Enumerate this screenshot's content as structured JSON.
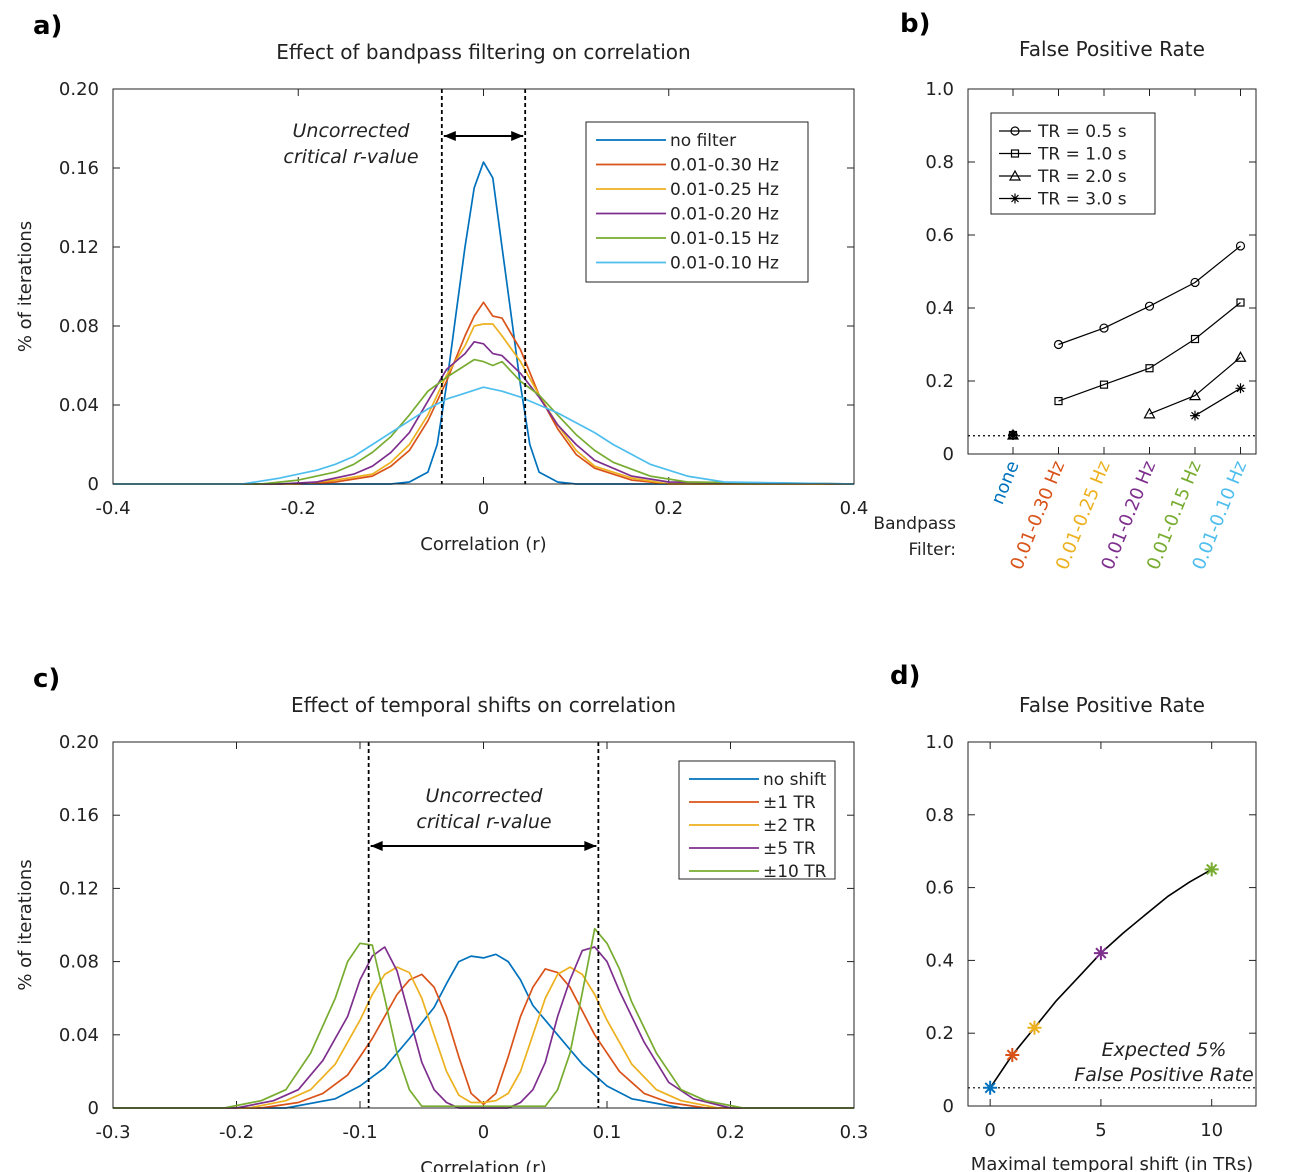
{
  "colors": {
    "blue": "#0072BD",
    "orange": "#D95319",
    "yellow": "#EDB120",
    "purple": "#7E2F8E",
    "green": "#77AC30",
    "cyan": "#4DBEEE",
    "black": "#000000"
  },
  "chart_data": [
    {
      "panel_label": "a)",
      "type": "line",
      "title": "Effect of bandpass filtering on correlation",
      "xlabel": "Correlation (r)",
      "ylabel": "% of iterations",
      "xlim": [
        -0.4,
        0.4
      ],
      "ylim": [
        0,
        0.2
      ],
      "xticks": [
        -0.4,
        -0.2,
        0,
        0.2,
        0.4
      ],
      "xtick_labels": [
        "-0.4",
        "-0.2",
        "0",
        "0.2",
        "0.4"
      ],
      "yticks": [
        0,
        0.04,
        0.08,
        0.12,
        0.16,
        0.2
      ],
      "ytick_labels": [
        "0",
        "0.04",
        "0.08",
        "0.12",
        "0.16",
        "0.20"
      ],
      "legend_position": "top-right",
      "critical_lines": [
        -0.045,
        0.045
      ],
      "annotation": [
        "Uncorrected",
        "critical r-value"
      ],
      "series": [
        {
          "name": "no filter",
          "color": "blue",
          "x": [
            -0.4,
            -0.1,
            -0.08,
            -0.06,
            -0.05,
            -0.04,
            -0.03,
            -0.02,
            -0.01,
            0,
            0.01,
            0.02,
            0.03,
            0.04,
            0.05,
            0.06,
            0.08,
            0.1,
            0.4
          ],
          "y": [
            0,
            0,
            0.001,
            0.006,
            0.02,
            0.05,
            0.085,
            0.12,
            0.15,
            0.163,
            0.155,
            0.12,
            0.085,
            0.05,
            0.02,
            0.006,
            0.001,
            0,
            0
          ]
        },
        {
          "name": "0.01-0.30 Hz",
          "color": "orange",
          "x": [
            -0.4,
            -0.2,
            -0.16,
            -0.12,
            -0.1,
            -0.08,
            -0.06,
            -0.04,
            -0.02,
            -0.01,
            0,
            0.01,
            0.02,
            0.04,
            0.06,
            0.08,
            0.1,
            0.12,
            0.16,
            0.2,
            0.4
          ],
          "y": [
            0,
            0,
            0.001,
            0.004,
            0.009,
            0.017,
            0.032,
            0.052,
            0.075,
            0.085,
            0.092,
            0.085,
            0.084,
            0.068,
            0.045,
            0.028,
            0.015,
            0.008,
            0.002,
            0,
            0
          ]
        },
        {
          "name": "0.01-0.25 Hz",
          "color": "yellow",
          "x": [
            -0.4,
            -0.2,
            -0.16,
            -0.12,
            -0.1,
            -0.08,
            -0.06,
            -0.04,
            -0.02,
            -0.01,
            0,
            0.01,
            0.02,
            0.04,
            0.06,
            0.08,
            0.1,
            0.12,
            0.16,
            0.2,
            0.4
          ],
          "y": [
            0,
            0,
            0.002,
            0.005,
            0.011,
            0.02,
            0.035,
            0.055,
            0.07,
            0.08,
            0.081,
            0.081,
            0.075,
            0.062,
            0.045,
            0.03,
            0.017,
            0.009,
            0.003,
            0,
            0
          ]
        },
        {
          "name": "0.01-0.20 Hz",
          "color": "purple",
          "x": [
            -0.4,
            -0.22,
            -0.18,
            -0.14,
            -0.12,
            -0.1,
            -0.08,
            -0.06,
            -0.04,
            -0.02,
            -0.01,
            0,
            0.01,
            0.02,
            0.04,
            0.06,
            0.08,
            0.1,
            0.12,
            0.16,
            0.2,
            0.4
          ],
          "y": [
            0,
            0,
            0.001,
            0.005,
            0.009,
            0.016,
            0.026,
            0.042,
            0.058,
            0.066,
            0.072,
            0.071,
            0.066,
            0.065,
            0.056,
            0.044,
            0.03,
            0.02,
            0.012,
            0.004,
            0.001,
            0
          ]
        },
        {
          "name": "0.01-0.15 Hz",
          "color": "green",
          "x": [
            -0.4,
            -0.24,
            -0.2,
            -0.16,
            -0.14,
            -0.12,
            -0.1,
            -0.08,
            -0.06,
            -0.04,
            -0.02,
            -0.01,
            0,
            0.01,
            0.02,
            0.04,
            0.06,
            0.08,
            0.1,
            0.12,
            0.14,
            0.18,
            0.22,
            0.4
          ],
          "y": [
            0,
            0,
            0.002,
            0.006,
            0.01,
            0.016,
            0.024,
            0.035,
            0.047,
            0.054,
            0.06,
            0.063,
            0.062,
            0.06,
            0.062,
            0.052,
            0.045,
            0.035,
            0.025,
            0.017,
            0.011,
            0.004,
            0.001,
            0
          ]
        },
        {
          "name": "0.01-0.10 Hz",
          "color": "cyan",
          "x": [
            -0.4,
            -0.26,
            -0.22,
            -0.18,
            -0.16,
            -0.14,
            -0.12,
            -0.1,
            -0.08,
            -0.06,
            -0.04,
            -0.02,
            0,
            0.02,
            0.04,
            0.06,
            0.08,
            0.1,
            0.12,
            0.14,
            0.16,
            0.18,
            0.22,
            0.26,
            0.4
          ],
          "y": [
            0,
            0,
            0.003,
            0.007,
            0.01,
            0.014,
            0.02,
            0.026,
            0.032,
            0.038,
            0.043,
            0.046,
            0.049,
            0.047,
            0.044,
            0.04,
            0.036,
            0.031,
            0.026,
            0.02,
            0.015,
            0.01,
            0.004,
            0.001,
            0
          ]
        }
      ]
    },
    {
      "panel_label": "b)",
      "type": "line",
      "title": "False Positive Rate",
      "ylim": [
        0,
        1
      ],
      "yticks": [
        0,
        0.2,
        0.4,
        0.6,
        0.8,
        1
      ],
      "ytick_labels": [
        "0",
        "0.2",
        "0.4",
        "0.6",
        "0.8",
        "1.0"
      ],
      "categories": [
        "none",
        "0.01-0.30 Hz",
        "0.01-0.25 Hz",
        "0.01-0.20 Hz",
        "0.01-0.15 Hz",
        "0.01-0.10 Hz"
      ],
      "category_colors": [
        "blue",
        "orange",
        "yellow",
        "purple",
        "green",
        "cyan"
      ],
      "bandpass_label": [
        "Bandpass",
        "Filter:"
      ],
      "legend_position": "top-left",
      "reference_line": 0.05,
      "none_value": 0.052,
      "series": [
        {
          "name": "TR = 0.5 s",
          "marker": "circle",
          "values": [
            null,
            0.3,
            0.345,
            0.405,
            0.47,
            0.57
          ]
        },
        {
          "name": "TR = 1.0 s",
          "marker": "square",
          "values": [
            null,
            0.145,
            0.19,
            0.235,
            0.315,
            0.415
          ]
        },
        {
          "name": "TR = 2.0 s",
          "marker": "triangle",
          "values": [
            null,
            null,
            null,
            0.11,
            0.16,
            0.265
          ]
        },
        {
          "name": "TR = 3.0 s",
          "marker": "star",
          "values": [
            null,
            null,
            null,
            null,
            0.105,
            0.18
          ]
        }
      ]
    },
    {
      "panel_label": "c)",
      "type": "line",
      "title": "Effect of temporal shifts on correlation",
      "xlabel": "Correlation (r)",
      "ylabel": "% of iterations",
      "xlim": [
        -0.3,
        0.3
      ],
      "ylim": [
        0,
        0.2
      ],
      "xticks": [
        -0.3,
        -0.2,
        -0.1,
        0,
        0.1,
        0.2,
        0.3
      ],
      "xtick_labels": [
        "-0.3",
        "-0.2",
        "-0.1",
        "0",
        "0.1",
        "0.2",
        "0.3"
      ],
      "yticks": [
        0,
        0.04,
        0.08,
        0.12,
        0.16,
        0.2
      ],
      "ytick_labels": [
        "0",
        "0.04",
        "0.08",
        "0.12",
        "0.16",
        "0.20"
      ],
      "legend_position": "top-right",
      "critical_lines": [
        -0.093,
        0.093
      ],
      "annotation": [
        "Uncorrected",
        "critical r-value"
      ],
      "series": [
        {
          "name": "no shift",
          "color": "blue",
          "x": [
            -0.3,
            -0.16,
            -0.12,
            -0.1,
            -0.08,
            -0.06,
            -0.04,
            -0.03,
            -0.02,
            -0.01,
            0,
            0.01,
            0.02,
            0.03,
            0.04,
            0.06,
            0.08,
            0.1,
            0.12,
            0.16,
            0.3
          ],
          "y": [
            0,
            0,
            0.005,
            0.012,
            0.022,
            0.038,
            0.055,
            0.068,
            0.08,
            0.083,
            0.082,
            0.084,
            0.08,
            0.07,
            0.056,
            0.04,
            0.024,
            0.012,
            0.005,
            0,
            0
          ]
        },
        {
          "name": "±1 TR",
          "color": "orange",
          "x": [
            -0.3,
            -0.18,
            -0.15,
            -0.13,
            -0.11,
            -0.09,
            -0.07,
            -0.06,
            -0.05,
            -0.04,
            -0.03,
            -0.02,
            -0.01,
            0,
            0.01,
            0.02,
            0.03,
            0.04,
            0.05,
            0.06,
            0.07,
            0.09,
            0.11,
            0.13,
            0.15,
            0.18,
            0.3
          ],
          "y": [
            0,
            0,
            0.003,
            0.008,
            0.018,
            0.038,
            0.062,
            0.07,
            0.073,
            0.066,
            0.05,
            0.028,
            0.008,
            0.002,
            0.008,
            0.028,
            0.05,
            0.066,
            0.076,
            0.074,
            0.066,
            0.04,
            0.02,
            0.008,
            0.003,
            0,
            0
          ]
        },
        {
          "name": "±2 TR",
          "color": "yellow",
          "x": [
            -0.3,
            -0.19,
            -0.16,
            -0.14,
            -0.12,
            -0.1,
            -0.09,
            -0.08,
            -0.07,
            -0.06,
            -0.05,
            -0.04,
            -0.03,
            -0.02,
            -0.01,
            0,
            0.01,
            0.02,
            0.03,
            0.04,
            0.05,
            0.06,
            0.07,
            0.08,
            0.09,
            0.1,
            0.12,
            0.14,
            0.16,
            0.19,
            0.3
          ],
          "y": [
            0,
            0,
            0.004,
            0.01,
            0.024,
            0.048,
            0.062,
            0.073,
            0.077,
            0.074,
            0.06,
            0.04,
            0.02,
            0.007,
            0.003,
            0.003,
            0.004,
            0.008,
            0.02,
            0.04,
            0.06,
            0.073,
            0.077,
            0.073,
            0.062,
            0.048,
            0.024,
            0.01,
            0.004,
            0,
            0
          ]
        },
        {
          "name": "±5 TR",
          "color": "purple",
          "x": [
            -0.3,
            -0.2,
            -0.17,
            -0.15,
            -0.13,
            -0.11,
            -0.1,
            -0.09,
            -0.08,
            -0.07,
            -0.06,
            -0.05,
            -0.04,
            -0.03,
            -0.02,
            0.02,
            0.03,
            0.04,
            0.05,
            0.06,
            0.07,
            0.08,
            0.09,
            0.1,
            0.11,
            0.13,
            0.15,
            0.17,
            0.2,
            0.3
          ],
          "y": [
            0,
            0,
            0.004,
            0.01,
            0.026,
            0.05,
            0.07,
            0.083,
            0.088,
            0.075,
            0.05,
            0.025,
            0.01,
            0.003,
            0,
            0,
            0.003,
            0.01,
            0.025,
            0.05,
            0.07,
            0.086,
            0.088,
            0.08,
            0.064,
            0.036,
            0.014,
            0.005,
            0,
            0
          ]
        },
        {
          "name": "±10 TR",
          "color": "green",
          "x": [
            -0.3,
            -0.21,
            -0.18,
            -0.16,
            -0.14,
            -0.12,
            -0.11,
            -0.1,
            -0.09,
            -0.08,
            -0.07,
            -0.06,
            -0.05,
            0.05,
            0.06,
            0.07,
            0.08,
            0.09,
            0.1,
            0.11,
            0.12,
            0.14,
            0.16,
            0.18,
            0.21,
            0.3
          ],
          "y": [
            0,
            0,
            0.004,
            0.01,
            0.03,
            0.06,
            0.08,
            0.09,
            0.089,
            0.06,
            0.03,
            0.01,
            0.001,
            0.001,
            0.01,
            0.03,
            0.063,
            0.098,
            0.09,
            0.076,
            0.058,
            0.03,
            0.01,
            0.004,
            0,
            0
          ]
        }
      ]
    },
    {
      "panel_label": "d)",
      "type": "line",
      "title": "False Positive Rate",
      "xlabel": "Maximal temporal shift (in TRs)",
      "xlim": [
        -1,
        12
      ],
      "ylim": [
        0,
        1
      ],
      "xticks": [
        0,
        5,
        10
      ],
      "xtick_labels": [
        "0",
        "5",
        "10"
      ],
      "yticks": [
        0,
        0.2,
        0.4,
        0.6,
        0.8,
        1
      ],
      "ytick_labels": [
        "0",
        "0.2",
        "0.4",
        "0.6",
        "0.8",
        "1.0"
      ],
      "reference_line": 0.05,
      "annotation": [
        "Expected 5%",
        "False Positive Rate"
      ],
      "curve": {
        "x": [
          0,
          1,
          2,
          3,
          4,
          5,
          6,
          7,
          8,
          9,
          10
        ],
        "y": [
          0.05,
          0.14,
          0.215,
          0.29,
          0.355,
          0.42,
          0.475,
          0.525,
          0.575,
          0.615,
          0.65
        ]
      },
      "points": [
        {
          "x": 0,
          "y": 0.05,
          "color": "blue"
        },
        {
          "x": 1,
          "y": 0.14,
          "color": "orange"
        },
        {
          "x": 2,
          "y": 0.215,
          "color": "yellow"
        },
        {
          "x": 5,
          "y": 0.42,
          "color": "purple"
        },
        {
          "x": 10,
          "y": 0.65,
          "color": "green"
        }
      ]
    }
  ]
}
